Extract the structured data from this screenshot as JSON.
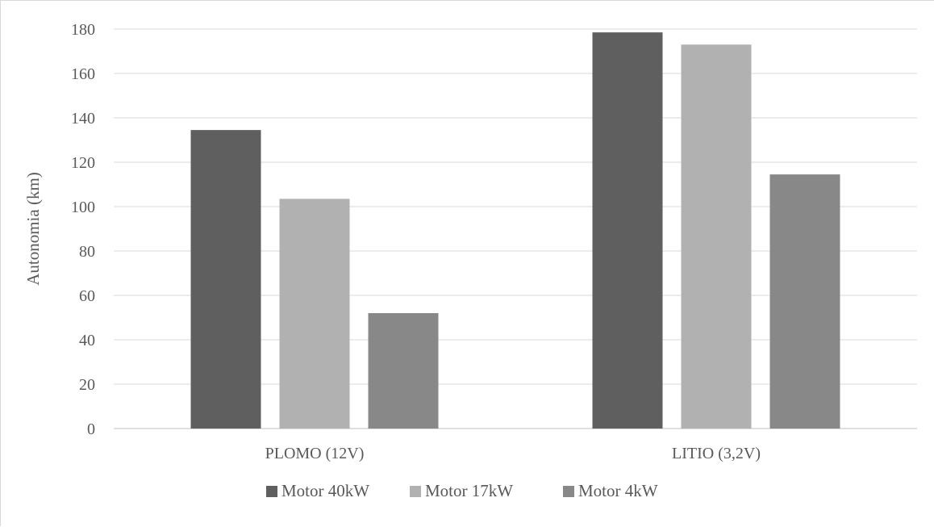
{
  "chart_data": {
    "type": "bar",
    "title": "",
    "xlabel": "",
    "ylabel": "Autonomia (km)",
    "ylim": [
      0,
      180
    ],
    "yticks": [
      0,
      20,
      40,
      60,
      80,
      100,
      120,
      140,
      160,
      180
    ],
    "categories": [
      "PLOMO (12V)",
      "LITIO (3,2V)"
    ],
    "series": [
      {
        "name": "Motor 40kW",
        "values": [
          134.5,
          178.5
        ],
        "color": "#5f5f5f"
      },
      {
        "name": "Motor 17kW",
        "values": [
          103.5,
          173
        ],
        "color": "#b1b1b1"
      },
      {
        "name": "Motor 4kW",
        "values": [
          52,
          114.5
        ],
        "color": "#888888"
      }
    ],
    "grid": true,
    "legend_position": "bottom"
  }
}
